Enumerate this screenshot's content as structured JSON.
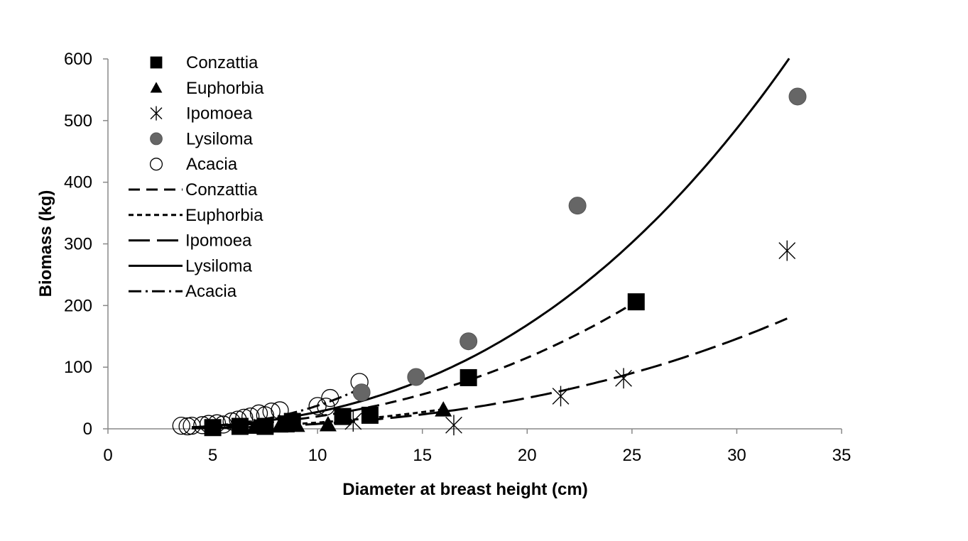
{
  "chart_data": {
    "type": "scatter",
    "title": "",
    "xlabel": "Diameter at breast height (cm)",
    "ylabel": "Biomass (kg)",
    "xlim": [
      0,
      35
    ],
    "ylim": [
      0,
      600
    ],
    "xticks": [
      0,
      5,
      10,
      15,
      20,
      25,
      30,
      35
    ],
    "yticks": [
      0,
      100,
      200,
      300,
      400,
      500,
      600
    ],
    "xtick_labels": [
      "0",
      "5",
      "10",
      "15",
      "20",
      "25",
      "30",
      "35"
    ],
    "ytick_labels": [
      "0",
      "100",
      "200",
      "300",
      "400",
      "500",
      "600"
    ],
    "grid": false,
    "legend_position": "top-left",
    "series": [
      {
        "name": "Conzattia",
        "kind": "points",
        "marker": "square-filled",
        "color": "#000000",
        "points": [
          [
            5.0,
            2
          ],
          [
            6.3,
            4
          ],
          [
            7.5,
            4
          ],
          [
            8.5,
            8
          ],
          [
            8.8,
            12
          ],
          [
            11.2,
            20
          ],
          [
            12.5,
            22
          ],
          [
            17.2,
            83
          ],
          [
            25.2,
            206
          ]
        ]
      },
      {
        "name": "Euphorbia",
        "kind": "points",
        "marker": "triangle-filled",
        "color": "#000000",
        "points": [
          [
            7.0,
            3
          ],
          [
            7.5,
            4
          ],
          [
            8.2,
            5
          ],
          [
            9.0,
            6
          ],
          [
            10.5,
            7
          ],
          [
            16.0,
            31
          ]
        ]
      },
      {
        "name": "Ipomoea",
        "kind": "points",
        "marker": "asterisk",
        "color": "#000000",
        "points": [
          [
            11.7,
            12
          ],
          [
            16.5,
            6
          ],
          [
            21.6,
            53
          ],
          [
            24.6,
            82
          ],
          [
            32.4,
            289
          ]
        ]
      },
      {
        "name": "Lysiloma",
        "kind": "points",
        "marker": "circle-filled",
        "color": "#666666",
        "points": [
          [
            12.1,
            59
          ],
          [
            14.7,
            84
          ],
          [
            17.2,
            142
          ],
          [
            22.4,
            362
          ],
          [
            32.9,
            539
          ]
        ]
      },
      {
        "name": "Acacia",
        "kind": "points",
        "marker": "circle-open",
        "color": "#000000",
        "points": [
          [
            3.5,
            5
          ],
          [
            3.8,
            4
          ],
          [
            4.0,
            5
          ],
          [
            4.5,
            6
          ],
          [
            4.8,
            8
          ],
          [
            5.2,
            9
          ],
          [
            5.5,
            7
          ],
          [
            5.9,
            12
          ],
          [
            6.2,
            15
          ],
          [
            6.5,
            18
          ],
          [
            6.8,
            20
          ],
          [
            7.2,
            25
          ],
          [
            7.5,
            22
          ],
          [
            7.8,
            28
          ],
          [
            8.2,
            30
          ],
          [
            10.0,
            37
          ],
          [
            10.4,
            36
          ],
          [
            10.6,
            50
          ],
          [
            12.0,
            76
          ]
        ]
      },
      {
        "name": "Conzattia",
        "kind": "fit",
        "style": "dash-medium",
        "coef": 0.0607,
        "exp": 2.52,
        "x_range": [
          4.0,
          25.2
        ]
      },
      {
        "name": "Euphorbia",
        "kind": "fit",
        "style": "dash-short",
        "coef": 0.0386,
        "exp": 2.42,
        "x_range": [
          4.0,
          16.0
        ]
      },
      {
        "name": "Ipomoea",
        "kind": "fit",
        "style": "dash-long",
        "coef": 0.0184,
        "exp": 2.64,
        "x_range": [
          4.0,
          32.4
        ]
      },
      {
        "name": "Lysiloma",
        "kind": "fit",
        "style": "solid",
        "coef": 0.0657,
        "exp": 2.62,
        "x_range": [
          4.0,
          32.5
        ]
      },
      {
        "name": "Acacia",
        "kind": "fit",
        "style": "dash-dot",
        "coef": 0.0412,
        "exp": 2.96,
        "x_range": [
          4.0,
          12.0
        ]
      }
    ],
    "legend": [
      {
        "label": "Conzattia",
        "symbol": "square-filled"
      },
      {
        "label": "Euphorbia",
        "symbol": "triangle-filled"
      },
      {
        "label": "Ipomoea",
        "symbol": "asterisk"
      },
      {
        "label": "Lysiloma",
        "symbol": "circle-filled"
      },
      {
        "label": "Acacia",
        "symbol": "circle-open"
      },
      {
        "label": "Conzattia",
        "symbol": "dash-medium"
      },
      {
        "label": "Euphorbia",
        "symbol": "dash-short"
      },
      {
        "label": "Ipomoea",
        "symbol": "dash-long"
      },
      {
        "label": "Lysiloma",
        "symbol": "solid"
      },
      {
        "label": "Acacia",
        "symbol": "dash-dot"
      }
    ]
  }
}
